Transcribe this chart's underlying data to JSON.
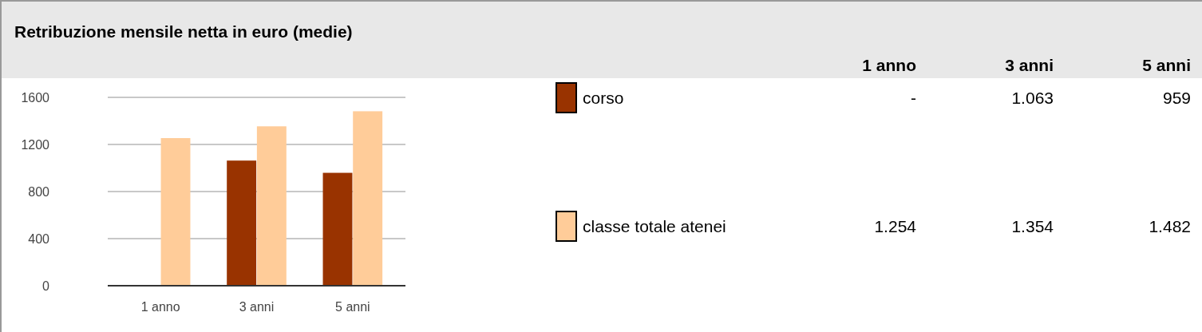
{
  "chart_data": [
    {
      "type": "bar",
      "title": "Retribuzione mensile netta in euro (medie)",
      "categories": [
        "1 anno",
        "3 anni",
        "5 anni"
      ],
      "series": [
        {
          "name": "corso",
          "color": "#993300",
          "values": [
            null,
            1063,
            959
          ]
        },
        {
          "name": "classe totale atenei",
          "color": "#ffcc99",
          "values": [
            1254,
            1354,
            1482
          ]
        }
      ],
      "ylim": [
        0,
        1600
      ],
      "yticks": [
        0,
        400,
        800,
        1200,
        1600
      ],
      "grid": "y",
      "legend": "right"
    },
    {
      "type": "other",
      "categories": [
        "1 anno",
        "3 anni",
        "5 anni"
      ],
      "annotations": [
        "-",
        "1.063",
        "959",
        "1.254",
        "1.354",
        "1.482"
      ]
    }
  ]
}
